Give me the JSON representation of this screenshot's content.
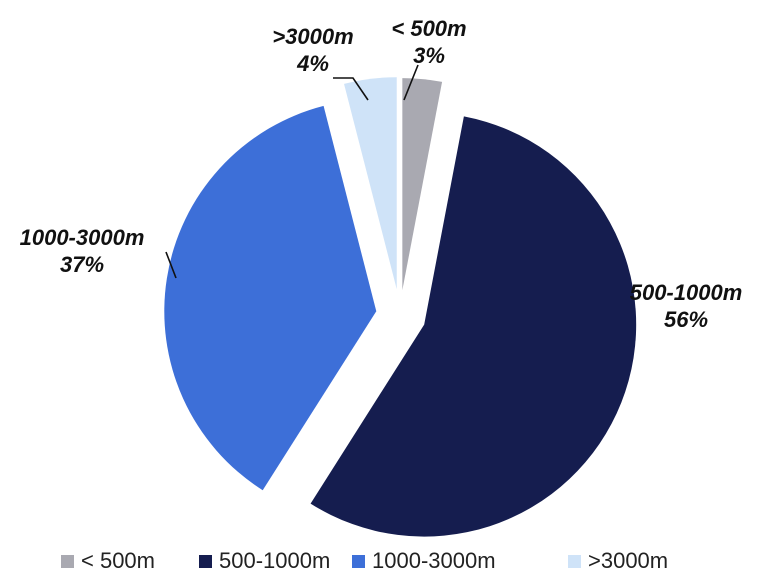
{
  "chart_data": {
    "type": "pie",
    "slices": [
      {
        "label": "< 500m",
        "value": 3,
        "value_label": "3%",
        "color": "#a9a9b1"
      },
      {
        "label": "500-1000m",
        "value": 56,
        "value_label": "56%",
        "color": "#151d4f"
      },
      {
        "label": "1000-3000m",
        "value": 37,
        "value_label": "37%",
        "color": "#3d6fd8"
      },
      {
        "label": ">3000m",
        "value": 4,
        "value_label": "4%",
        "color": "#cfe3f8"
      }
    ],
    "legend": {
      "placement": "bottom",
      "entries": [
        "< 500m",
        "500-1000m",
        "1000-3000m",
        ">3000m"
      ]
    },
    "exploded": true
  }
}
